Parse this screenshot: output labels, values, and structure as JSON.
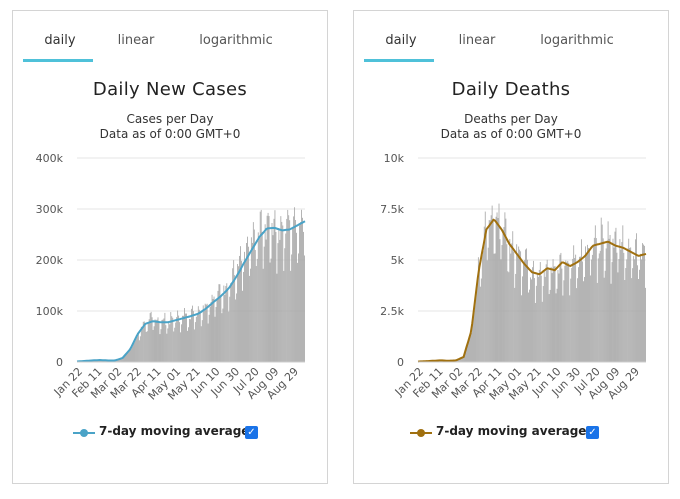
{
  "tabs": [
    "daily",
    "linear",
    "logarithmic"
  ],
  "active_tab": "daily",
  "legend_check_glyph": "✓",
  "chart_data": [
    {
      "type": "bar",
      "title": "Daily New Cases",
      "subtitle_1": "Cases per Day",
      "subtitle_2": "Data as of 0:00 GMT+0",
      "ylim": [
        0,
        400000
      ],
      "yticks": [
        0,
        100000,
        200000,
        300000,
        400000
      ],
      "ytick_labels": [
        "0",
        "100k",
        "200k",
        "300k",
        "400k"
      ],
      "xtick_labels": [
        "Jan 22",
        "Feb 11",
        "Mar 02",
        "Mar 22",
        "Apr 11",
        "May 01",
        "May 21",
        "Jun 10",
        "Jun 30",
        "Jul 20",
        "Aug 09",
        "Aug 29"
      ],
      "legend": "7-day moving average",
      "line_color": "#4aa3c7",
      "bar_color": "#a6a6a6",
      "grid": true,
      "series_bars_weekly": [
        1000,
        2000,
        3000,
        4000,
        3000,
        3000,
        8000,
        25000,
        55000,
        78000,
        82000,
        80000,
        79000,
        83000,
        88000,
        92000,
        98000,
        110000,
        122000,
        135000,
        150000,
        175000,
        200000,
        225000,
        250000,
        262000,
        265000,
        260000,
        262000,
        270000,
        278000
      ],
      "series_ma_weekly": [
        1000,
        2000,
        3000,
        4000,
        3000,
        3000,
        8000,
        25000,
        55000,
        75000,
        80000,
        78000,
        78000,
        82000,
        86000,
        90000,
        95000,
        105000,
        118000,
        130000,
        145000,
        168000,
        195000,
        220000,
        245000,
        262000,
        263000,
        258000,
        260000,
        268000,
        276000
      ]
    },
    {
      "type": "bar",
      "title": "Daily Deaths",
      "subtitle_1": "Deaths per Day",
      "subtitle_2": "Data as of 0:00 GMT+0",
      "ylim": [
        0,
        10000
      ],
      "yticks": [
        0,
        2500,
        5000,
        7500,
        10000
      ],
      "ytick_labels": [
        "0",
        "2.5k",
        "5k",
        "7.5k",
        "10k"
      ],
      "xtick_labels": [
        "Jan 22",
        "Feb 11",
        "Mar 02",
        "Mar 22",
        "Apr 11",
        "May 01",
        "May 21",
        "Jun 10",
        "Jun 30",
        "Jul 20",
        "Aug 09",
        "Aug 29"
      ],
      "legend": "7-day moving average",
      "line_color": "#a0700f",
      "bar_color": "#a6a6a6",
      "grid": true,
      "series_bars_weekly": [
        20,
        40,
        60,
        80,
        60,
        80,
        250,
        1500,
        4500,
        6500,
        7000,
        6500,
        5800,
        5300,
        4800,
        4400,
        4300,
        4600,
        4500,
        4900,
        4700,
        4900,
        5200,
        5700,
        5800,
        5900,
        5700,
        5600,
        5400,
        5200,
        5300
      ],
      "series_ma_weekly": [
        20,
        40,
        60,
        80,
        60,
        80,
        250,
        1500,
        4500,
        6500,
        7000,
        6500,
        5800,
        5300,
        4800,
        4400,
        4300,
        4600,
        4500,
        4900,
        4700,
        4900,
        5200,
        5700,
        5800,
        5900,
        5700,
        5600,
        5400,
        5200,
        5300
      ]
    }
  ]
}
